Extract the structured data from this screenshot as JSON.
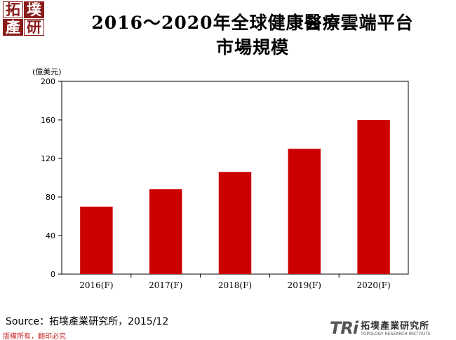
{
  "logo": {
    "chars": [
      "拓",
      "墣",
      "產",
      "研"
    ]
  },
  "title_line1": "2016～2020年全球健康醫療雲端平台",
  "title_line2": "市場規模",
  "source": "Source：拓墣產業研究所，2015/12",
  "copyright": "版權所有，翻印必究",
  "brand": {
    "mark": "TRi",
    "name_cn": "拓墣產業研究所",
    "name_en": "TOPOLOGY RESEARCH INSTITUTE"
  },
  "colors": {
    "bar": "#cc0000",
    "logo": "#8a1b1b"
  },
  "chart_data": {
    "type": "bar",
    "title": "2016～2020年全球健康醫療雲端平台市場規模",
    "ylabel": "(億美元)",
    "xlabel": "",
    "categories": [
      "2016(F)",
      "2017(F)",
      "2018(F)",
      "2019(F)",
      "2020(F)"
    ],
    "values": [
      70,
      88,
      106,
      130,
      160
    ],
    "ylim": [
      0,
      200
    ],
    "yticks": [
      0,
      40,
      80,
      120,
      160,
      200
    ],
    "grid": false,
    "legend": "none"
  }
}
